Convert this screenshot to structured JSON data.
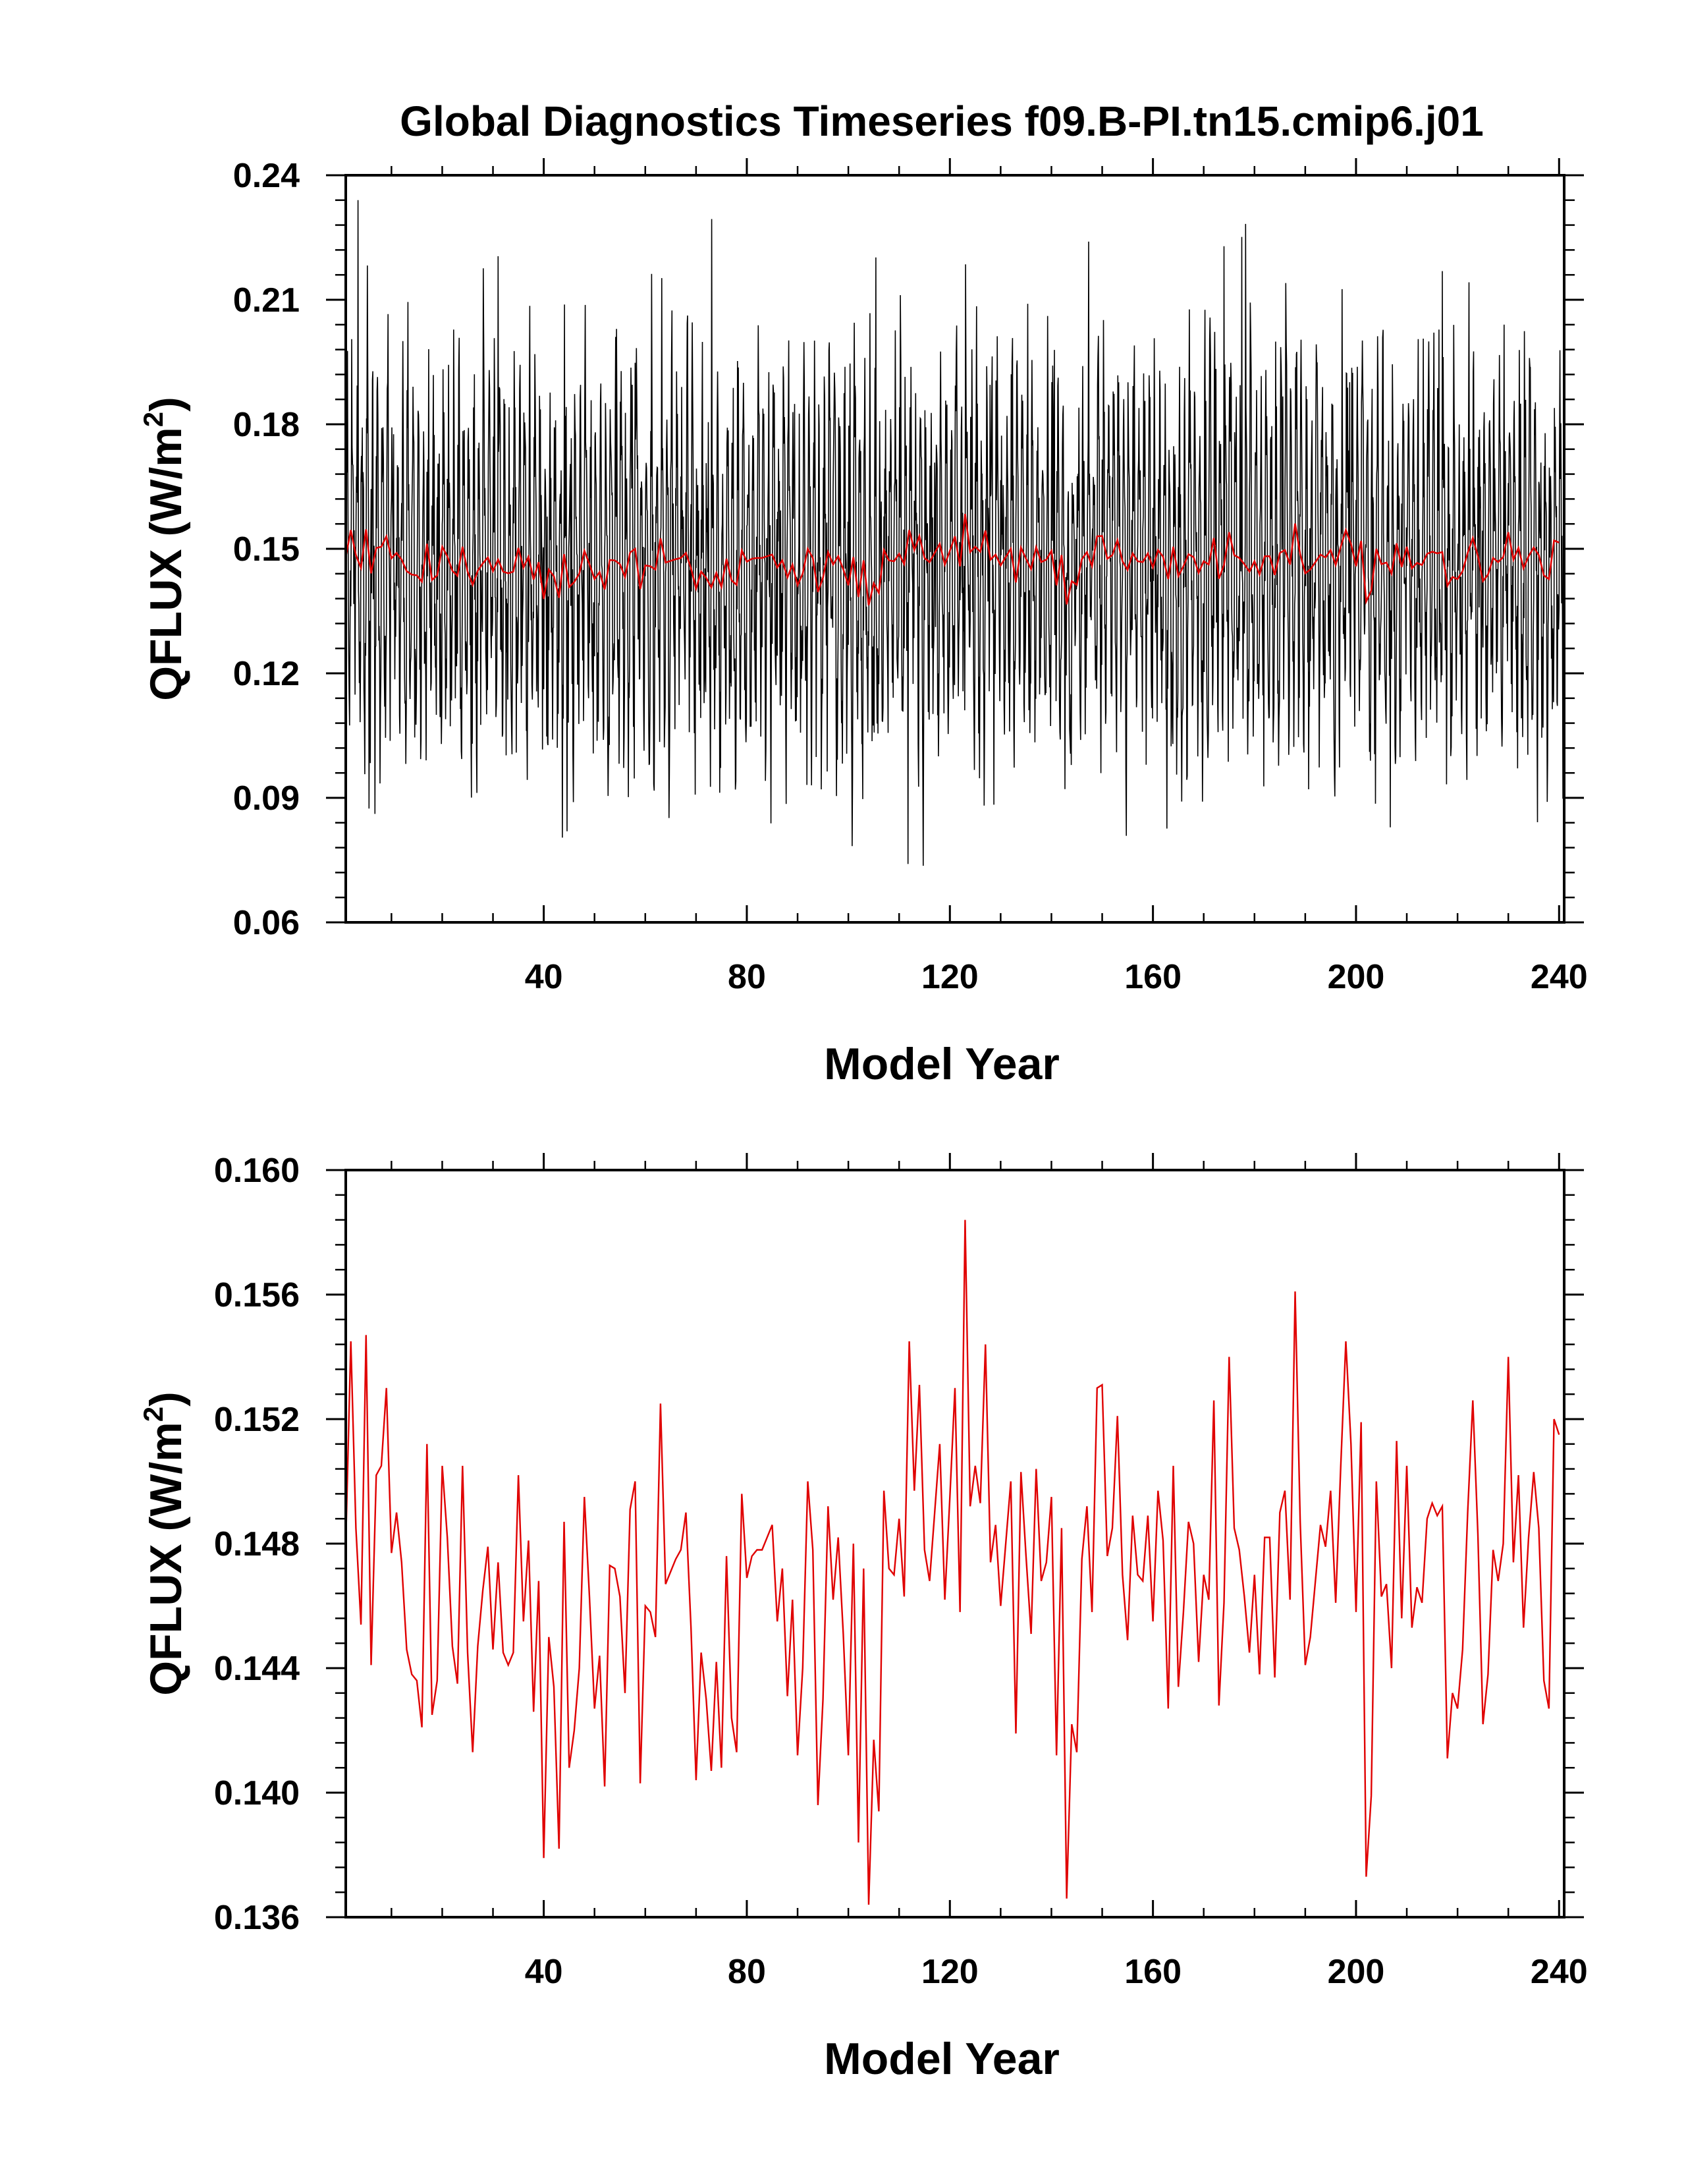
{
  "title": "Global Diagnostics Timeseries f09.B-PI.tn15.cmip6.j01",
  "colors": {
    "monthly": "#000000",
    "annual": "#e00000"
  },
  "chart_data": [
    {
      "type": "line",
      "xlabel": "Model Year",
      "ylabel": "QFLUX (W/m",
      "ylabel_sup": "2",
      "ylabel_close": ")",
      "xlim": [
        1,
        241
      ],
      "ylim": [
        0.06,
        0.24
      ],
      "xticks": [
        40,
        80,
        120,
        160,
        200,
        240
      ],
      "xtick_labels": [
        "40",
        "80",
        "120",
        "160",
        "200",
        "240"
      ],
      "yticks": [
        0.06,
        0.09,
        0.12,
        0.15,
        0.18,
        0.21,
        0.24
      ],
      "ytick_labels": [
        "0.06",
        "0.09",
        "0.12",
        "0.15",
        "0.18",
        "0.21",
        "0.24"
      ],
      "series": [
        {
          "kind": "monthly",
          "mean": 0.147,
          "envelope_low": [
            0.082,
            0.095
          ],
          "envelope_high": [
            0.2,
            0.24
          ],
          "n_points": 2880
        },
        {
          "kind": "annual",
          "ref": "annual_means"
        }
      ]
    },
    {
      "type": "line",
      "xlabel": "Model Year",
      "ylabel": "QFLUX (W/m",
      "ylabel_sup": "2",
      "ylabel_close": ")",
      "xlim": [
        1,
        241
      ],
      "ylim": [
        0.136,
        0.16
      ],
      "xticks": [
        40,
        80,
        120,
        160,
        200,
        240
      ],
      "xtick_labels": [
        "40",
        "80",
        "120",
        "160",
        "200",
        "240"
      ],
      "yticks": [
        0.136,
        0.14,
        0.144,
        0.148,
        0.152,
        0.156,
        0.16
      ],
      "ytick_labels": [
        "0.136",
        "0.140",
        "0.144",
        "0.148",
        "0.152",
        "0.156",
        "0.160"
      ],
      "series": [
        {
          "kind": "annual",
          "ref": "annual_means"
        }
      ]
    }
  ],
  "annual_means": [
    0.148,
    0.1545,
    0.1485,
    0.1454,
    0.1547,
    0.1441,
    0.1502,
    0.1505,
    0.153,
    0.1477,
    0.149,
    0.1474,
    0.1446,
    0.1438,
    0.1436,
    0.1421,
    0.1512,
    0.1425,
    0.1436,
    0.1505,
    0.1482,
    0.1447,
    0.1435,
    0.1505,
    0.1445,
    0.1413,
    0.1447,
    0.1465,
    0.1479,
    0.1446,
    0.1474,
    0.1445,
    0.1441,
    0.1445,
    0.1502,
    0.1455,
    0.1481,
    0.1426,
    0.1468,
    0.1379,
    0.145,
    0.1434,
    0.1382,
    0.1487,
    0.1408,
    0.142,
    0.144,
    0.1495,
    0.1463,
    0.1427,
    0.1444,
    0.1402,
    0.1473,
    0.1472,
    0.1463,
    0.1432,
    0.1491,
    0.15,
    0.1403,
    0.146,
    0.1458,
    0.145,
    0.1525,
    0.1467,
    0.1471,
    0.1475,
    0.1478,
    0.149,
    0.1453,
    0.1404,
    0.1445,
    0.143,
    0.1407,
    0.1442,
    0.1408,
    0.1476,
    0.1424,
    0.1413,
    0.1496,
    0.1469,
    0.1476,
    0.1478,
    0.1478,
    0.1482,
    0.1486,
    0.1455,
    0.1472,
    0.1431,
    0.1462,
    0.1412,
    0.144,
    0.15,
    0.1478,
    0.1396,
    0.143,
    0.1492,
    0.1462,
    0.1482,
    0.1451,
    0.1412,
    0.148,
    0.1384,
    0.1472,
    0.1364,
    0.1417,
    0.1394,
    0.1497,
    0.1472,
    0.147,
    0.1488,
    0.1463,
    0.1545,
    0.1497,
    0.1531,
    0.1478,
    0.1468,
    0.149,
    0.1512,
    0.1462,
    0.1495,
    0.153,
    0.1458,
    0.1584,
    0.1492,
    0.1505,
    0.1493,
    0.1544,
    0.1474,
    0.1486,
    0.146,
    0.148,
    0.15,
    0.1419,
    0.1503,
    0.1476,
    0.1451,
    0.1504,
    0.1468,
    0.1474,
    0.1495,
    0.1412,
    0.1485,
    0.1366,
    0.1422,
    0.1413,
    0.1475,
    0.1492,
    0.1458,
    0.153,
    0.1531,
    0.1476,
    0.1485,
    0.1521,
    0.147,
    0.1449,
    0.1489,
    0.147,
    0.1468,
    0.1489,
    0.1455,
    0.1497,
    0.1481,
    0.1427,
    0.1505,
    0.1434,
    0.1458,
    0.1487,
    0.148,
    0.1442,
    0.147,
    0.1462,
    0.1526,
    0.1428,
    0.1461,
    0.154,
    0.1485,
    0.1478,
    0.1463,
    0.1445,
    0.147,
    0.1438,
    0.1482,
    0.1482,
    0.1437,
    0.149,
    0.1497,
    0.1462,
    0.1561,
    0.1487,
    0.1441,
    0.145,
    0.1468,
    0.1486,
    0.1479,
    0.1497,
    0.1461,
    0.1505,
    0.1545,
    0.1512,
    0.1458,
    0.1519,
    0.1373,
    0.1399,
    0.15,
    0.1463,
    0.1467,
    0.144,
    0.1513,
    0.1456,
    0.1505,
    0.1453,
    0.1466,
    0.1461,
    0.1488,
    0.1493,
    0.1489,
    0.1492,
    0.1411,
    0.1432,
    0.1427,
    0.1446,
    0.149,
    0.1526,
    0.1483,
    0.1422,
    0.1438,
    0.1478,
    0.1468,
    0.148,
    0.154,
    0.1474,
    0.1502,
    0.1453,
    0.1482,
    0.1503,
    0.1485,
    0.1436,
    0.1427,
    0.152,
    0.1515
  ]
}
